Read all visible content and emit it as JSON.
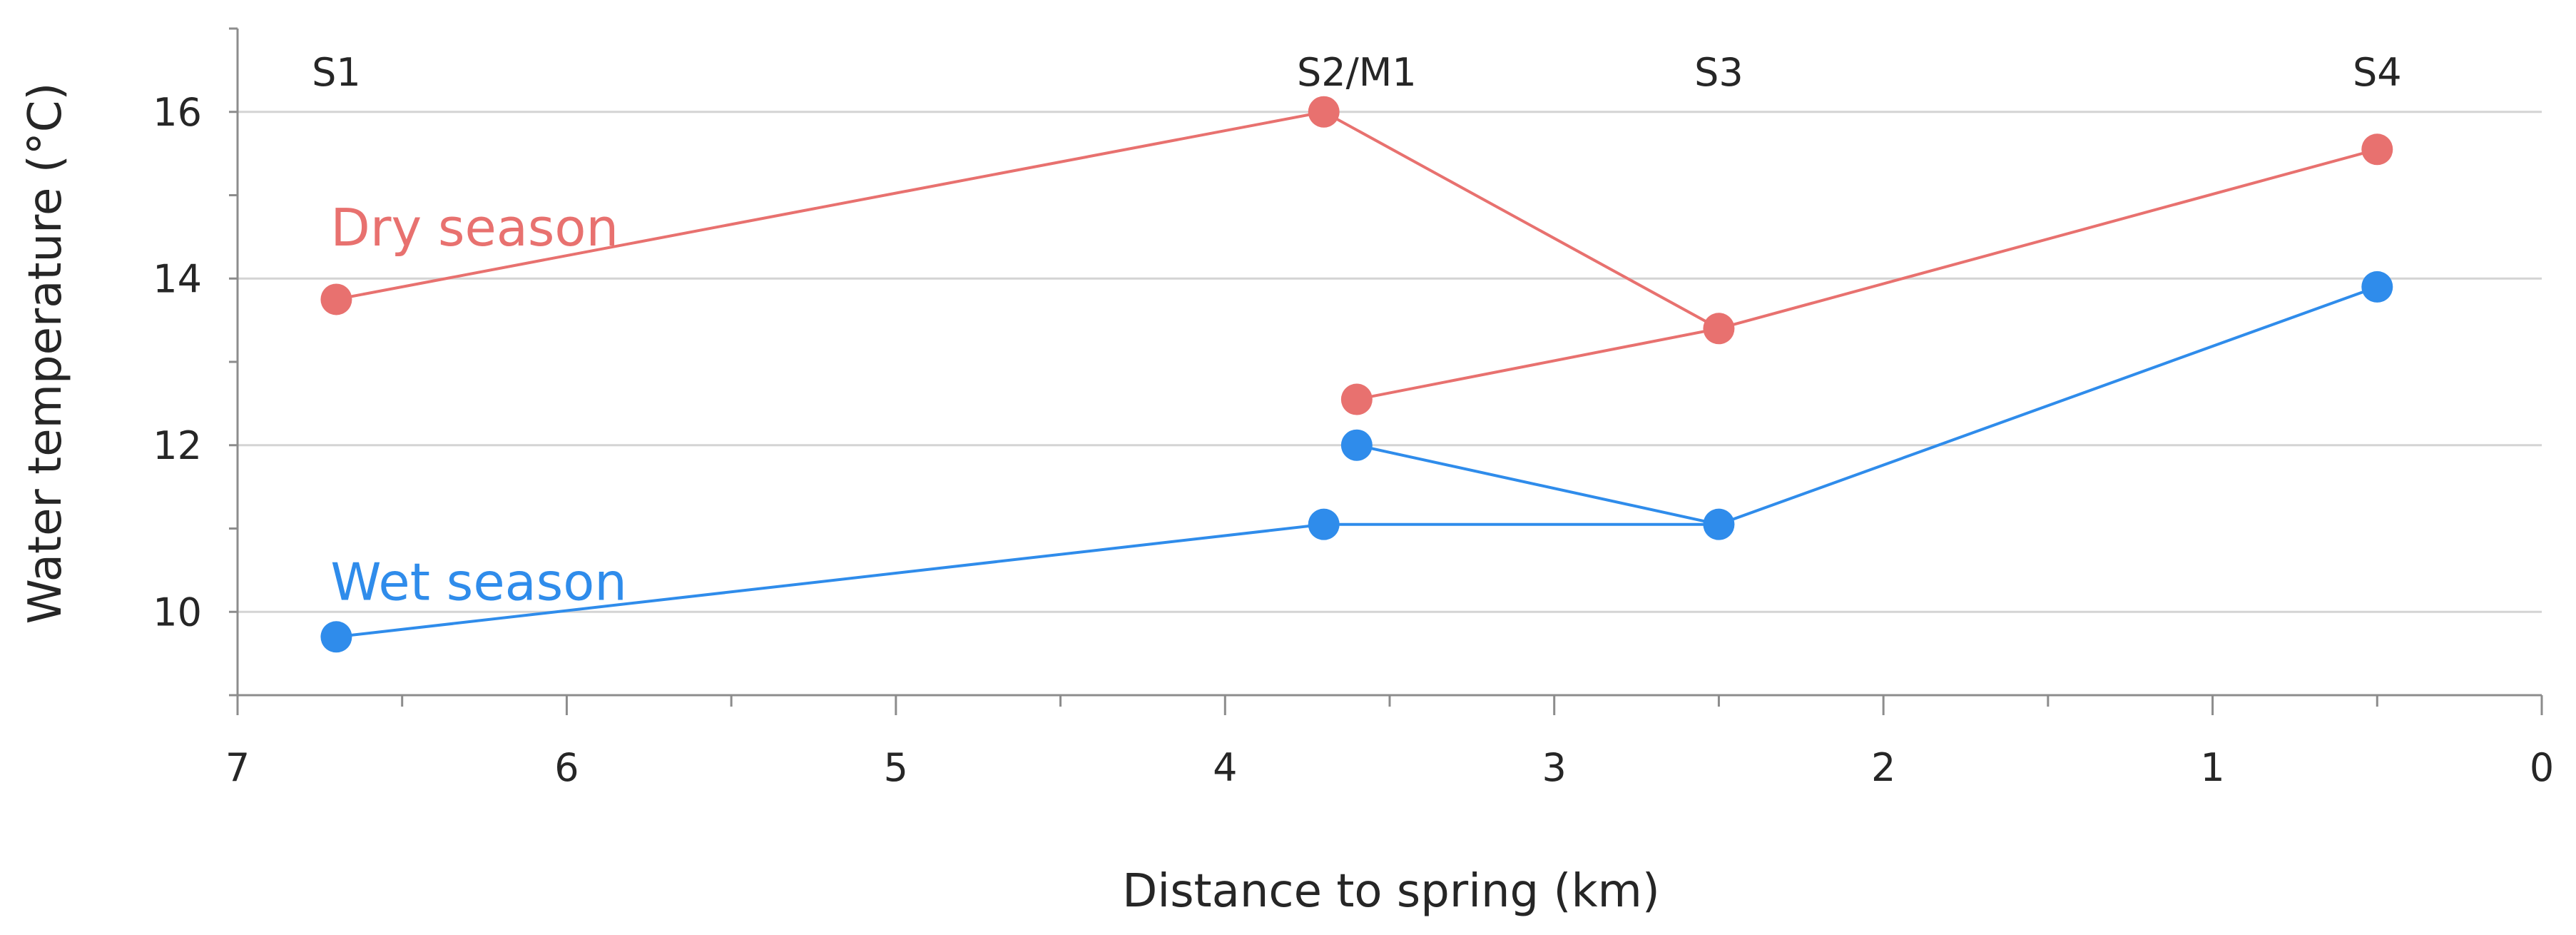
{
  "chart_data": {
    "type": "line",
    "xlabel": "Distance to spring (km)",
    "ylabel": "Water temperature (°C)",
    "xlim": [
      7,
      0
    ],
    "x_reversed": true,
    "ylim": [
      9,
      17
    ],
    "xticks": [
      7,
      6,
      5,
      4,
      3,
      2,
      1,
      0
    ],
    "yticks": [
      10,
      12,
      14,
      16
    ],
    "grid": "horizontal",
    "site_labels": [
      {
        "text": "S1",
        "x": 6.7
      },
      {
        "text": "S2/M1",
        "x": 3.6
      },
      {
        "text": "S3",
        "x": 2.5
      },
      {
        "text": "S4",
        "x": 0.5
      }
    ],
    "series": [
      {
        "name": "Dry season",
        "color": "#e8716f",
        "segments": [
          [
            {
              "x": 6.7,
              "y": 13.75
            },
            {
              "x": 3.7,
              "y": 16.0
            },
            {
              "x": 2.5,
              "y": 13.4
            }
          ],
          [
            {
              "x": 3.6,
              "y": 12.55
            },
            {
              "x": 2.5,
              "y": 13.4
            },
            {
              "x": 0.5,
              "y": 15.55
            }
          ]
        ]
      },
      {
        "name": "Wet season",
        "color": "#2f8ceb",
        "segments": [
          [
            {
              "x": 6.7,
              "y": 9.7
            },
            {
              "x": 3.7,
              "y": 11.05
            },
            {
              "x": 2.5,
              "y": 11.05
            }
          ],
          [
            {
              "x": 3.6,
              "y": 12.0
            },
            {
              "x": 2.5,
              "y": 11.05
            },
            {
              "x": 0.5,
              "y": 13.9
            }
          ]
        ]
      }
    ]
  }
}
